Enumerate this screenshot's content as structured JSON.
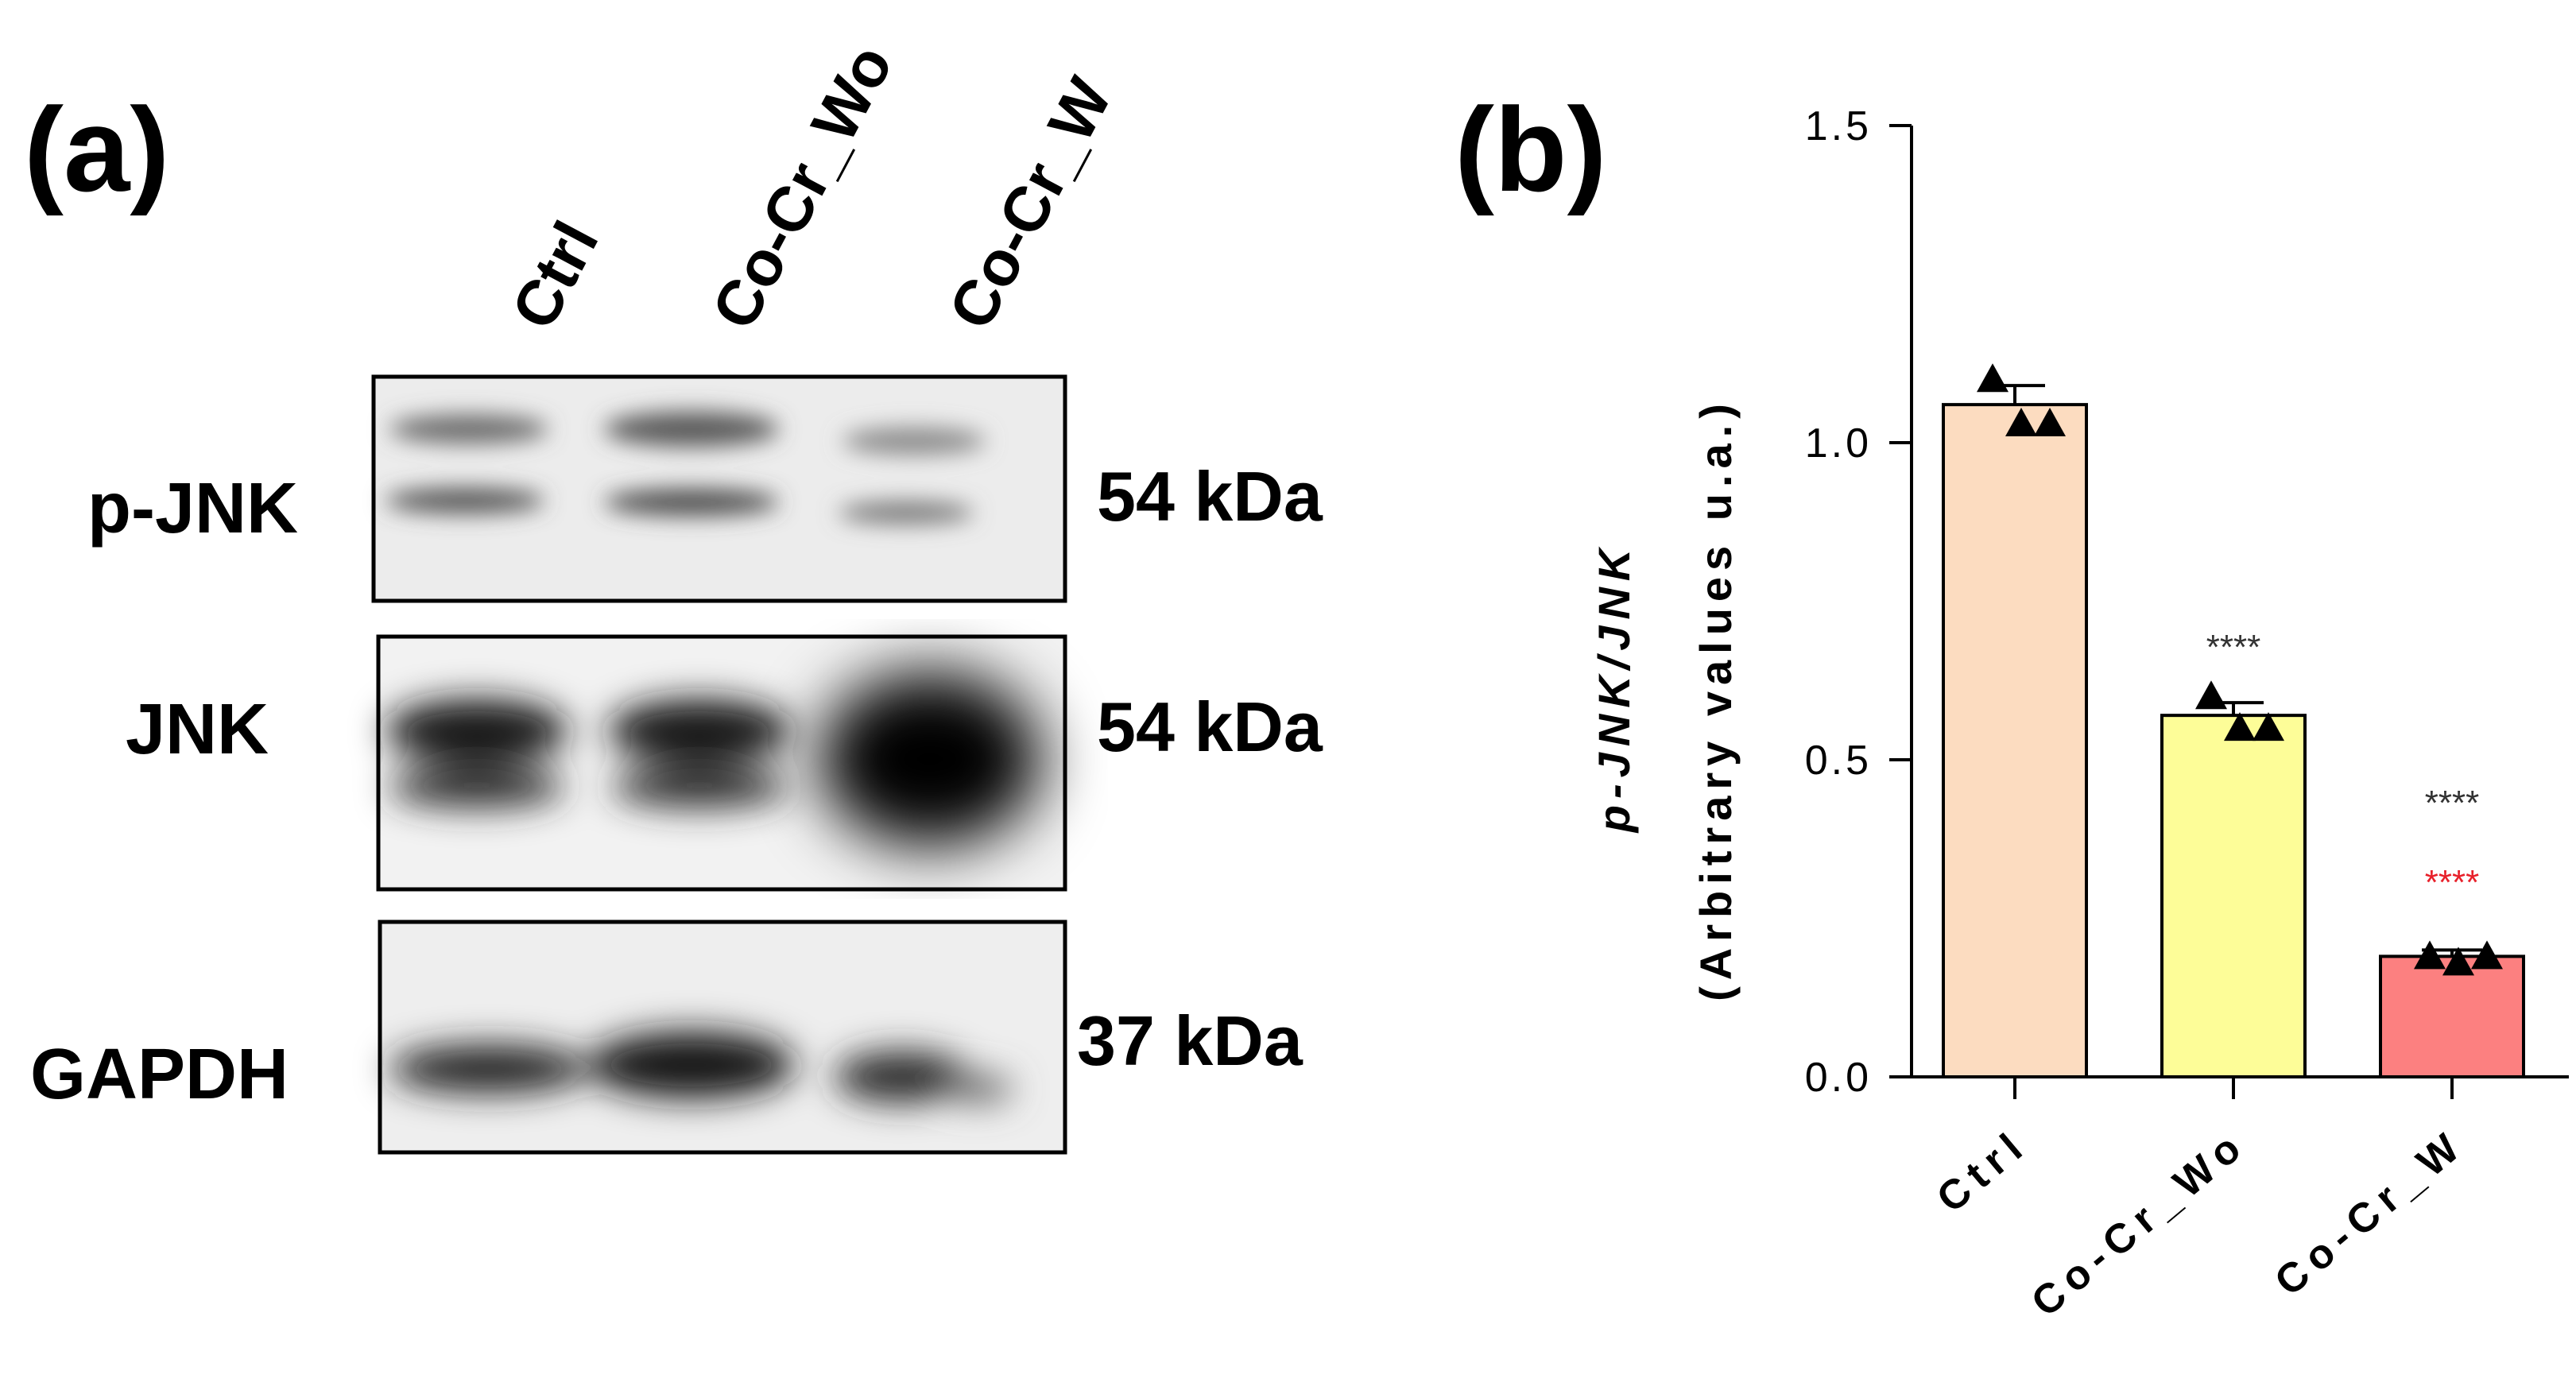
{
  "panel_a": {
    "label": "(a)",
    "lanes": [
      "Ctrl",
      "Co-Cr_Wo",
      "Co-Cr_W"
    ],
    "blots": [
      {
        "name": "p-JNK",
        "size": "54 kDa"
      },
      {
        "name": "JNK",
        "size": "54 kDa"
      },
      {
        "name": "GAPDH",
        "size": "37 kDa"
      }
    ]
  },
  "panel_b": {
    "label": "(b)"
  },
  "chart_data": {
    "type": "bar",
    "title": "",
    "categories": [
      "Ctrl",
      "Co-Cr_Wo",
      "Co-Cr_W"
    ],
    "values": [
      1.06,
      0.57,
      0.19
    ],
    "error": [
      0.03,
      0.02,
      0.01
    ],
    "points": [
      [
        1.1,
        1.03,
        1.03
      ],
      [
        0.6,
        0.55,
        0.55
      ],
      [
        0.19,
        0.18,
        0.19
      ]
    ],
    "ylim": [
      0,
      1.5
    ],
    "yticks": [
      "0.0",
      "0.5",
      "1.0",
      "1.5"
    ],
    "ytick_values": [
      0,
      0.5,
      1.0,
      1.5
    ],
    "ylabel_line1": "p-JNK/JNK",
    "ylabel_line2": "(Arbitrary values u.a.)",
    "xlabel": "",
    "colors": [
      "#fcdcc0",
      "#fdfd98",
      "#fc8080"
    ],
    "significance": [
      [],
      [
        {
          "text": "****",
          "color": "#333333"
        }
      ],
      [
        {
          "text": "****",
          "color": "#333333"
        },
        {
          "text": "****",
          "color": "#e8202a"
        }
      ]
    ],
    "grid": false,
    "legend": "none"
  }
}
